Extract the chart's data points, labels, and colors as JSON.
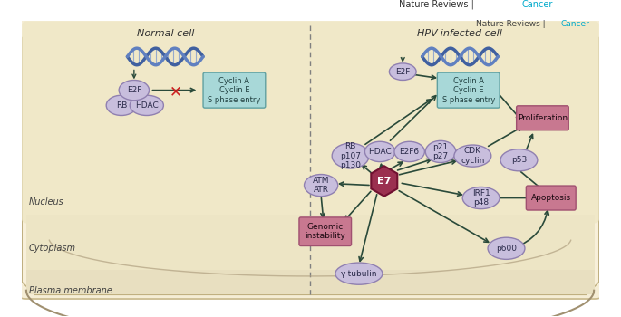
{
  "bg_outer": "#f5f0e0",
  "bg_plasma": "#e8e0c8",
  "bg_cytoplasm": "#f0e8d0",
  "bg_nucleus": "#f5efdc",
  "bg_white": "#ffffff",
  "color_ellipse": "#a89cc0",
  "color_ellipse_fill": "#c8bedd",
  "color_hex_fill": "#9b3050",
  "color_box_pink": "#c87890",
  "color_box_pink_fill": "#d8a0b0",
  "color_box_teal": "#78b8b8",
  "color_box_teal_fill": "#a8d8d8",
  "color_arrow": "#2a4a3a",
  "color_dna": "#4060a0",
  "title": "Nature Reviews | Cancer",
  "label_plasma": "Plasma membrane",
  "label_cytoplasm": "Cytoplasm",
  "label_nucleus": "Nucleus",
  "label_normal": "Normal cell",
  "label_hpv": "HPV-infected cell"
}
